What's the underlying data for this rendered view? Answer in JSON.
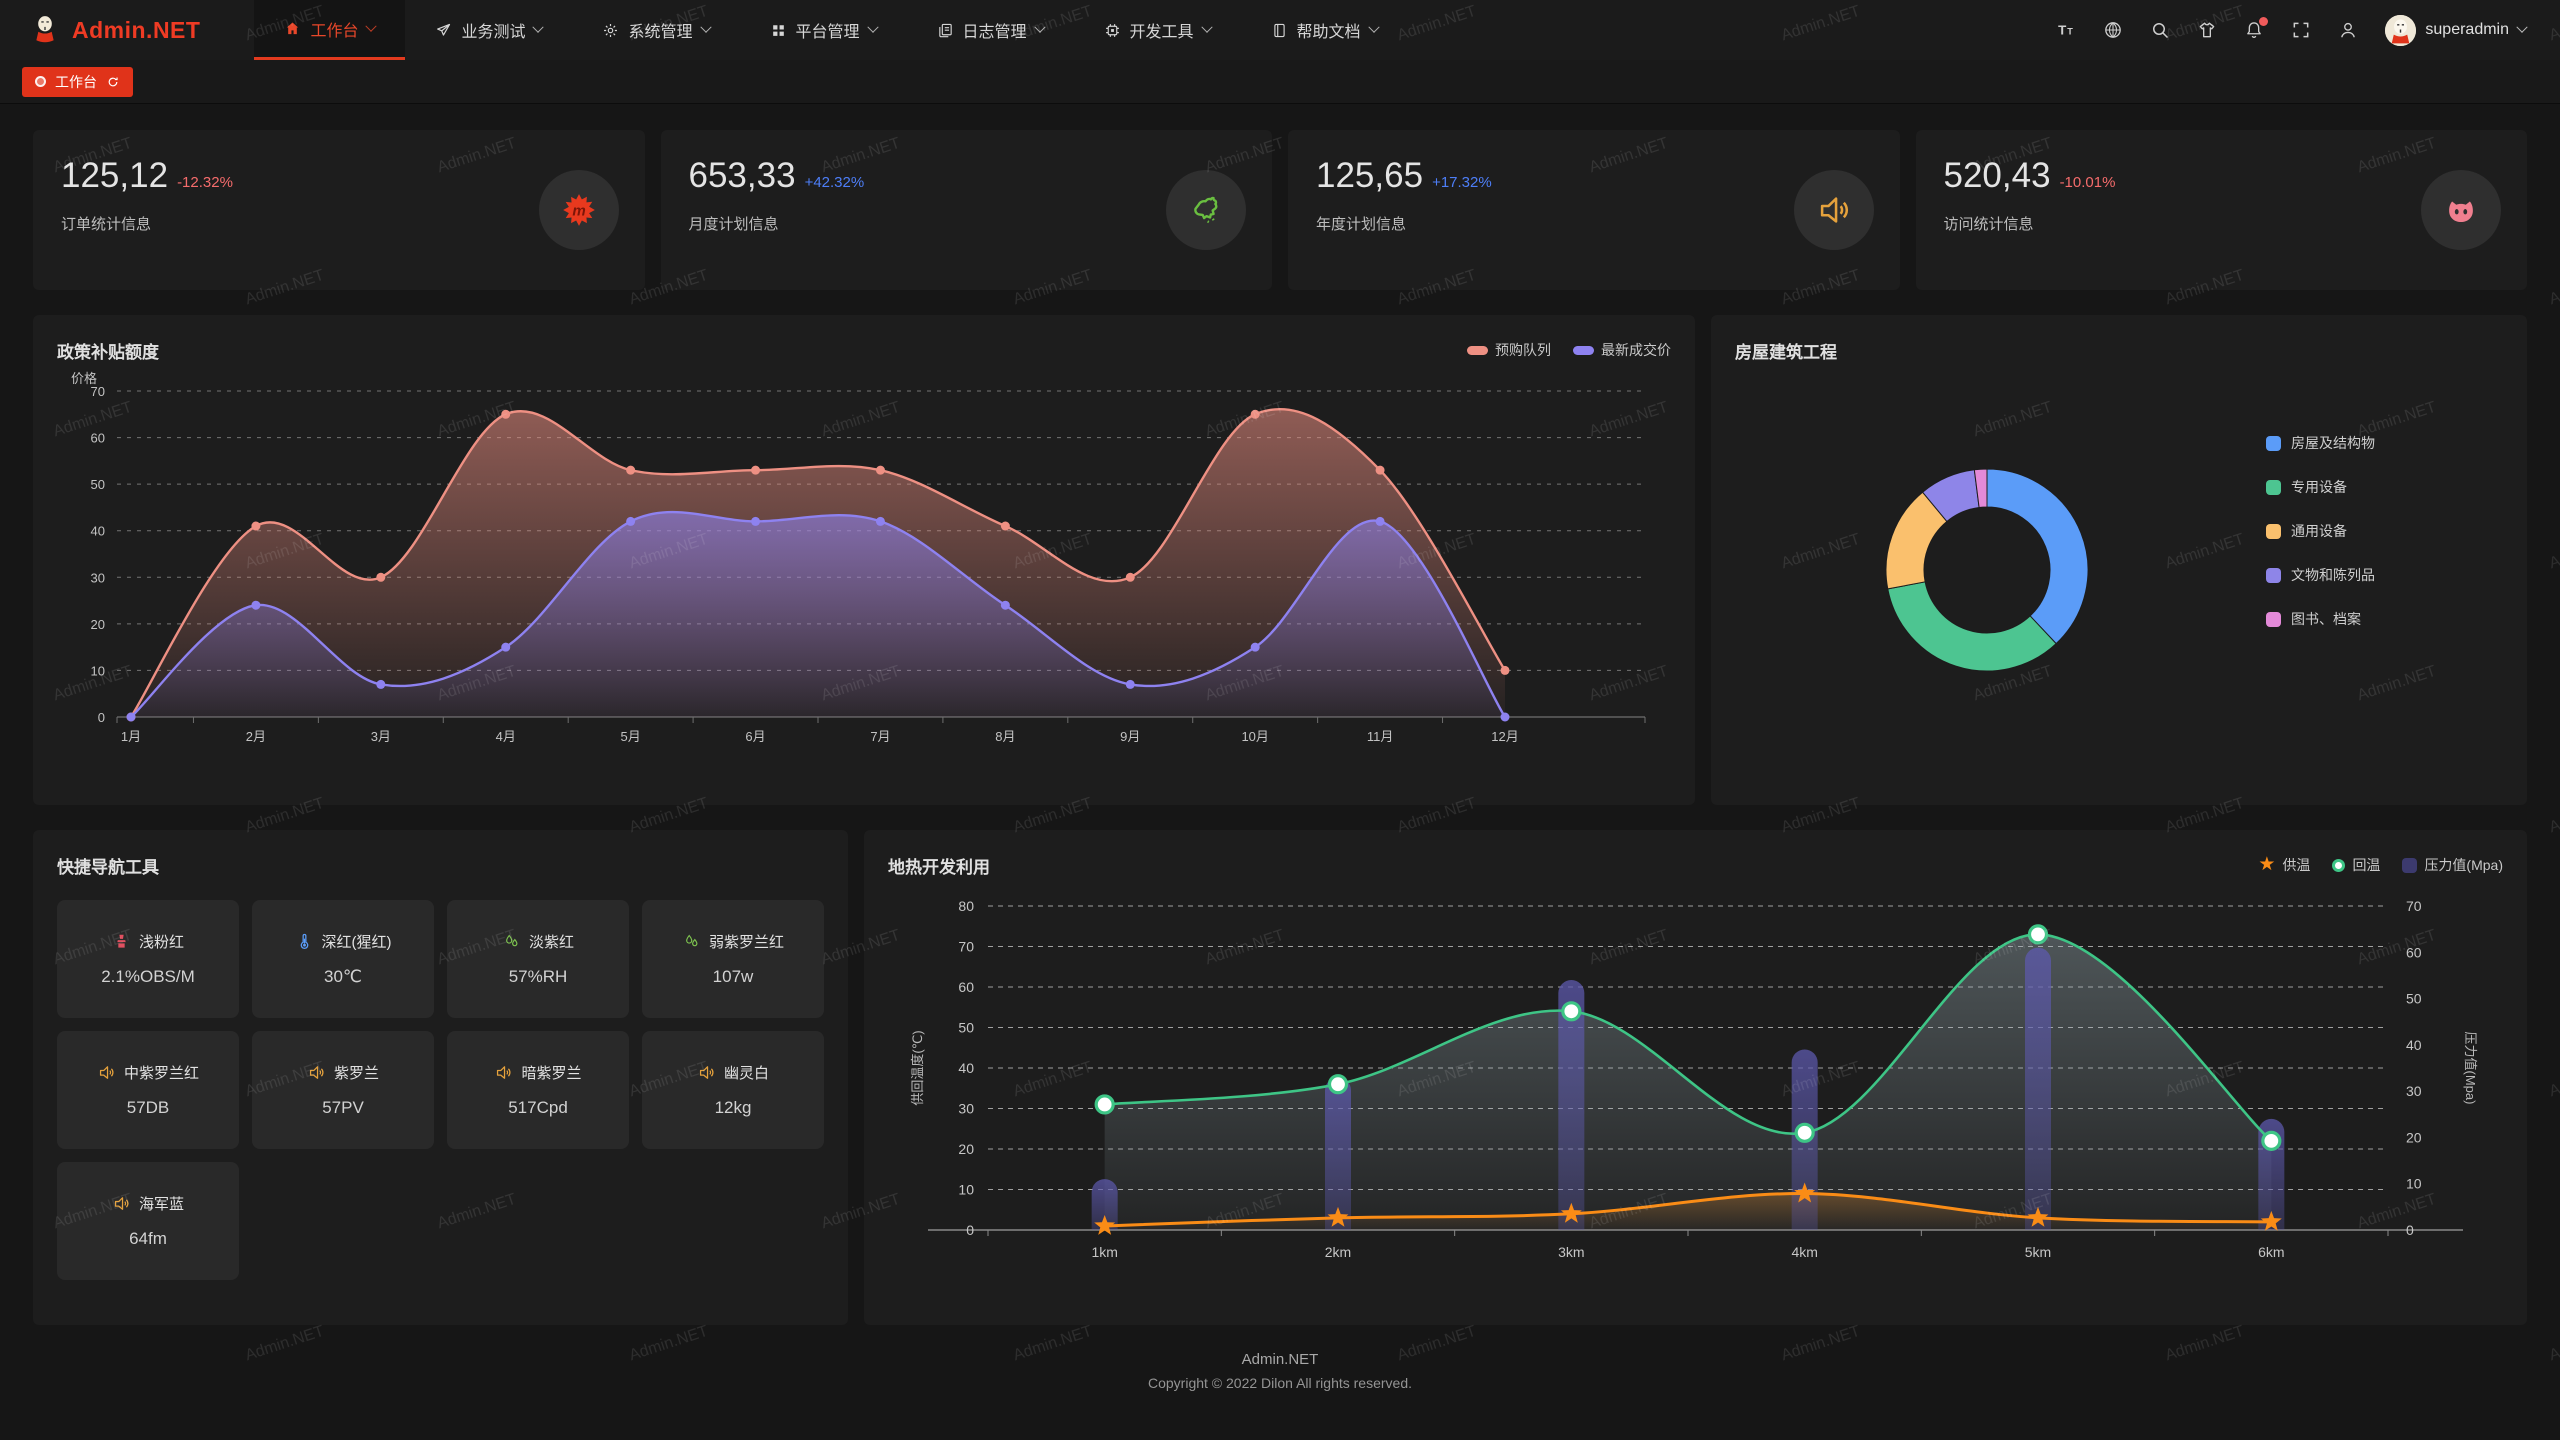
{
  "watermark": {
    "text": "Admin.NET"
  },
  "navbar": {
    "logo_text": "Admin.NET",
    "menus": [
      {
        "label": "工作台",
        "icon": "home-icon",
        "active": true
      },
      {
        "label": "业务测试",
        "icon": "send-icon",
        "active": false
      },
      {
        "label": "系统管理",
        "icon": "gear-icon",
        "active": false
      },
      {
        "label": "平台管理",
        "icon": "grid-icon",
        "active": false
      },
      {
        "label": "日志管理",
        "icon": "log-icon",
        "active": false
      },
      {
        "label": "开发工具",
        "icon": "cpu-icon",
        "active": false
      },
      {
        "label": "帮助文档",
        "icon": "book-icon",
        "active": false
      }
    ],
    "tools": [
      {
        "icon": "font-size-icon",
        "badge": false
      },
      {
        "icon": "language-icon",
        "badge": false
      },
      {
        "icon": "search-icon",
        "badge": false
      },
      {
        "icon": "theme-icon",
        "badge": false
      },
      {
        "icon": "bell-icon",
        "badge": true
      },
      {
        "icon": "fullscreen-icon",
        "badge": false
      },
      {
        "icon": "user-icon",
        "badge": false
      }
    ],
    "user": {
      "name": "superadmin"
    }
  },
  "tabbar": {
    "active_tab": "工作台"
  },
  "stat_cards": [
    {
      "value": "125,12",
      "delta": "-12.32%",
      "delta_color": "#f56c6c",
      "label": "订单统计信息",
      "icon": "splat-logo-icon",
      "icon_color": "#e8391e"
    },
    {
      "value": "653,33",
      "delta": "+42.32%",
      "delta_color": "#4d7ef7",
      "label": "月度计划信息",
      "icon": "china-map-icon",
      "icon_color": "#6abf40"
    },
    {
      "value": "125,65",
      "delta": "+17.32%",
      "delta_color": "#4d7ef7",
      "label": "年度计划信息",
      "icon": "speaker-icon",
      "icon_color": "#e6a23c"
    },
    {
      "value": "520,43",
      "delta": "-10.01%",
      "delta_color": "#f56c6c",
      "label": "访问统计信息",
      "icon": "cat-logo-icon",
      "icon_color": "#f07f8f"
    }
  ],
  "panels": {
    "line_chart": {
      "title": "政策补贴额度"
    },
    "donut": {
      "title": "房屋建筑工程"
    },
    "quick_nav": {
      "title": "快捷导航工具"
    },
    "geo": {
      "title": "地热开发利用"
    }
  },
  "quick_nav_items": [
    {
      "label": "浅粉红",
      "value": "2.1%OBS/M",
      "icon": "factory-icon",
      "icon_color": "#e05060"
    },
    {
      "label": "深红(猩红)",
      "value": "30℃",
      "icon": "thermometer-icon",
      "icon_color": "#5b9cf8"
    },
    {
      "label": "淡紫红",
      "value": "57%RH",
      "icon": "drops-icon",
      "icon_color": "#7ec44f"
    },
    {
      "label": "弱紫罗兰红",
      "value": "107w",
      "icon": "drops-icon",
      "icon_color": "#7ec44f"
    },
    {
      "label": "中紫罗兰红",
      "value": "57DB",
      "icon": "speaker-icon",
      "icon_color": "#e6a23c"
    },
    {
      "label": "紫罗兰",
      "value": "57PV",
      "icon": "speaker-icon",
      "icon_color": "#e6a23c"
    },
    {
      "label": "暗紫罗兰",
      "value": "517Cpd",
      "icon": "speaker-icon",
      "icon_color": "#e6a23c"
    },
    {
      "label": "幽灵白",
      "value": "12kg",
      "icon": "speaker-icon",
      "icon_color": "#e6a23c"
    },
    {
      "label": "海军蓝",
      "value": "64fm",
      "icon": "speaker-icon",
      "icon_color": "#e6a23c"
    }
  ],
  "chart_data": [
    {
      "id": "subsidy",
      "type": "line",
      "title": "政策补贴额度",
      "ylabel": "价格",
      "ylim": [
        0,
        70
      ],
      "grid": true,
      "legend_position": "top-right",
      "categories": [
        "1月",
        "2月",
        "3月",
        "4月",
        "5月",
        "6月",
        "7月",
        "8月",
        "9月",
        "10月",
        "11月",
        "12月"
      ],
      "series": [
        {
          "name": "预购队列",
          "color": "#ee9083",
          "values": [
            0,
            41,
            30,
            65,
            53,
            53,
            53,
            41,
            30,
            65,
            53,
            10
          ]
        },
        {
          "name": "最新成交价",
          "color": "#8e82f0",
          "values": [
            0,
            24,
            7,
            15,
            42,
            42,
            42,
            24,
            7,
            15,
            42,
            0
          ]
        }
      ]
    },
    {
      "id": "building",
      "type": "pie",
      "title": "房屋建筑工程",
      "legend_position": "right",
      "slices": [
        {
          "name": "房屋及结构物",
          "value": 38,
          "color": "#5b9cf8"
        },
        {
          "name": "专用设备",
          "value": 34,
          "color": "#4dc591"
        },
        {
          "name": "通用设备",
          "value": 17,
          "color": "#fac06d"
        },
        {
          "name": "文物和陈列品",
          "value": 9,
          "color": "#8e85e8"
        },
        {
          "name": "图书、档案",
          "value": 2,
          "color": "#e38ad8"
        }
      ]
    },
    {
      "id": "geothermal",
      "type": "line-bar",
      "title": "地热开发利用",
      "categories": [
        "1km",
        "2km",
        "3km",
        "4km",
        "5km",
        "6km"
      ],
      "ylabel_left": "供回温度(℃)",
      "ylim_left": [
        0,
        80
      ],
      "ylabel_right": "压力值(Mpa)",
      "ylim_right": [
        0,
        70
      ],
      "legend_position": "top-right",
      "series": [
        {
          "name": "供温",
          "type": "line",
          "marker": "star",
          "axis": "left",
          "color": "#fa8c16",
          "values": [
            1,
            3,
            4,
            9,
            3,
            2
          ]
        },
        {
          "name": "回温",
          "type": "line",
          "marker": "circle",
          "axis": "left",
          "color": "#3ec586",
          "values": [
            31,
            36,
            54,
            24,
            73,
            22
          ]
        },
        {
          "name": "压力值(Mpa)",
          "type": "bar",
          "marker": "rect",
          "axis": "right",
          "color": "#55519e",
          "values": [
            11,
            33,
            54,
            39,
            61,
            24
          ]
        }
      ]
    }
  ],
  "footer": {
    "line1": "Admin.NET",
    "line2": "Copyright © 2022 Dilon All rights reserved."
  }
}
